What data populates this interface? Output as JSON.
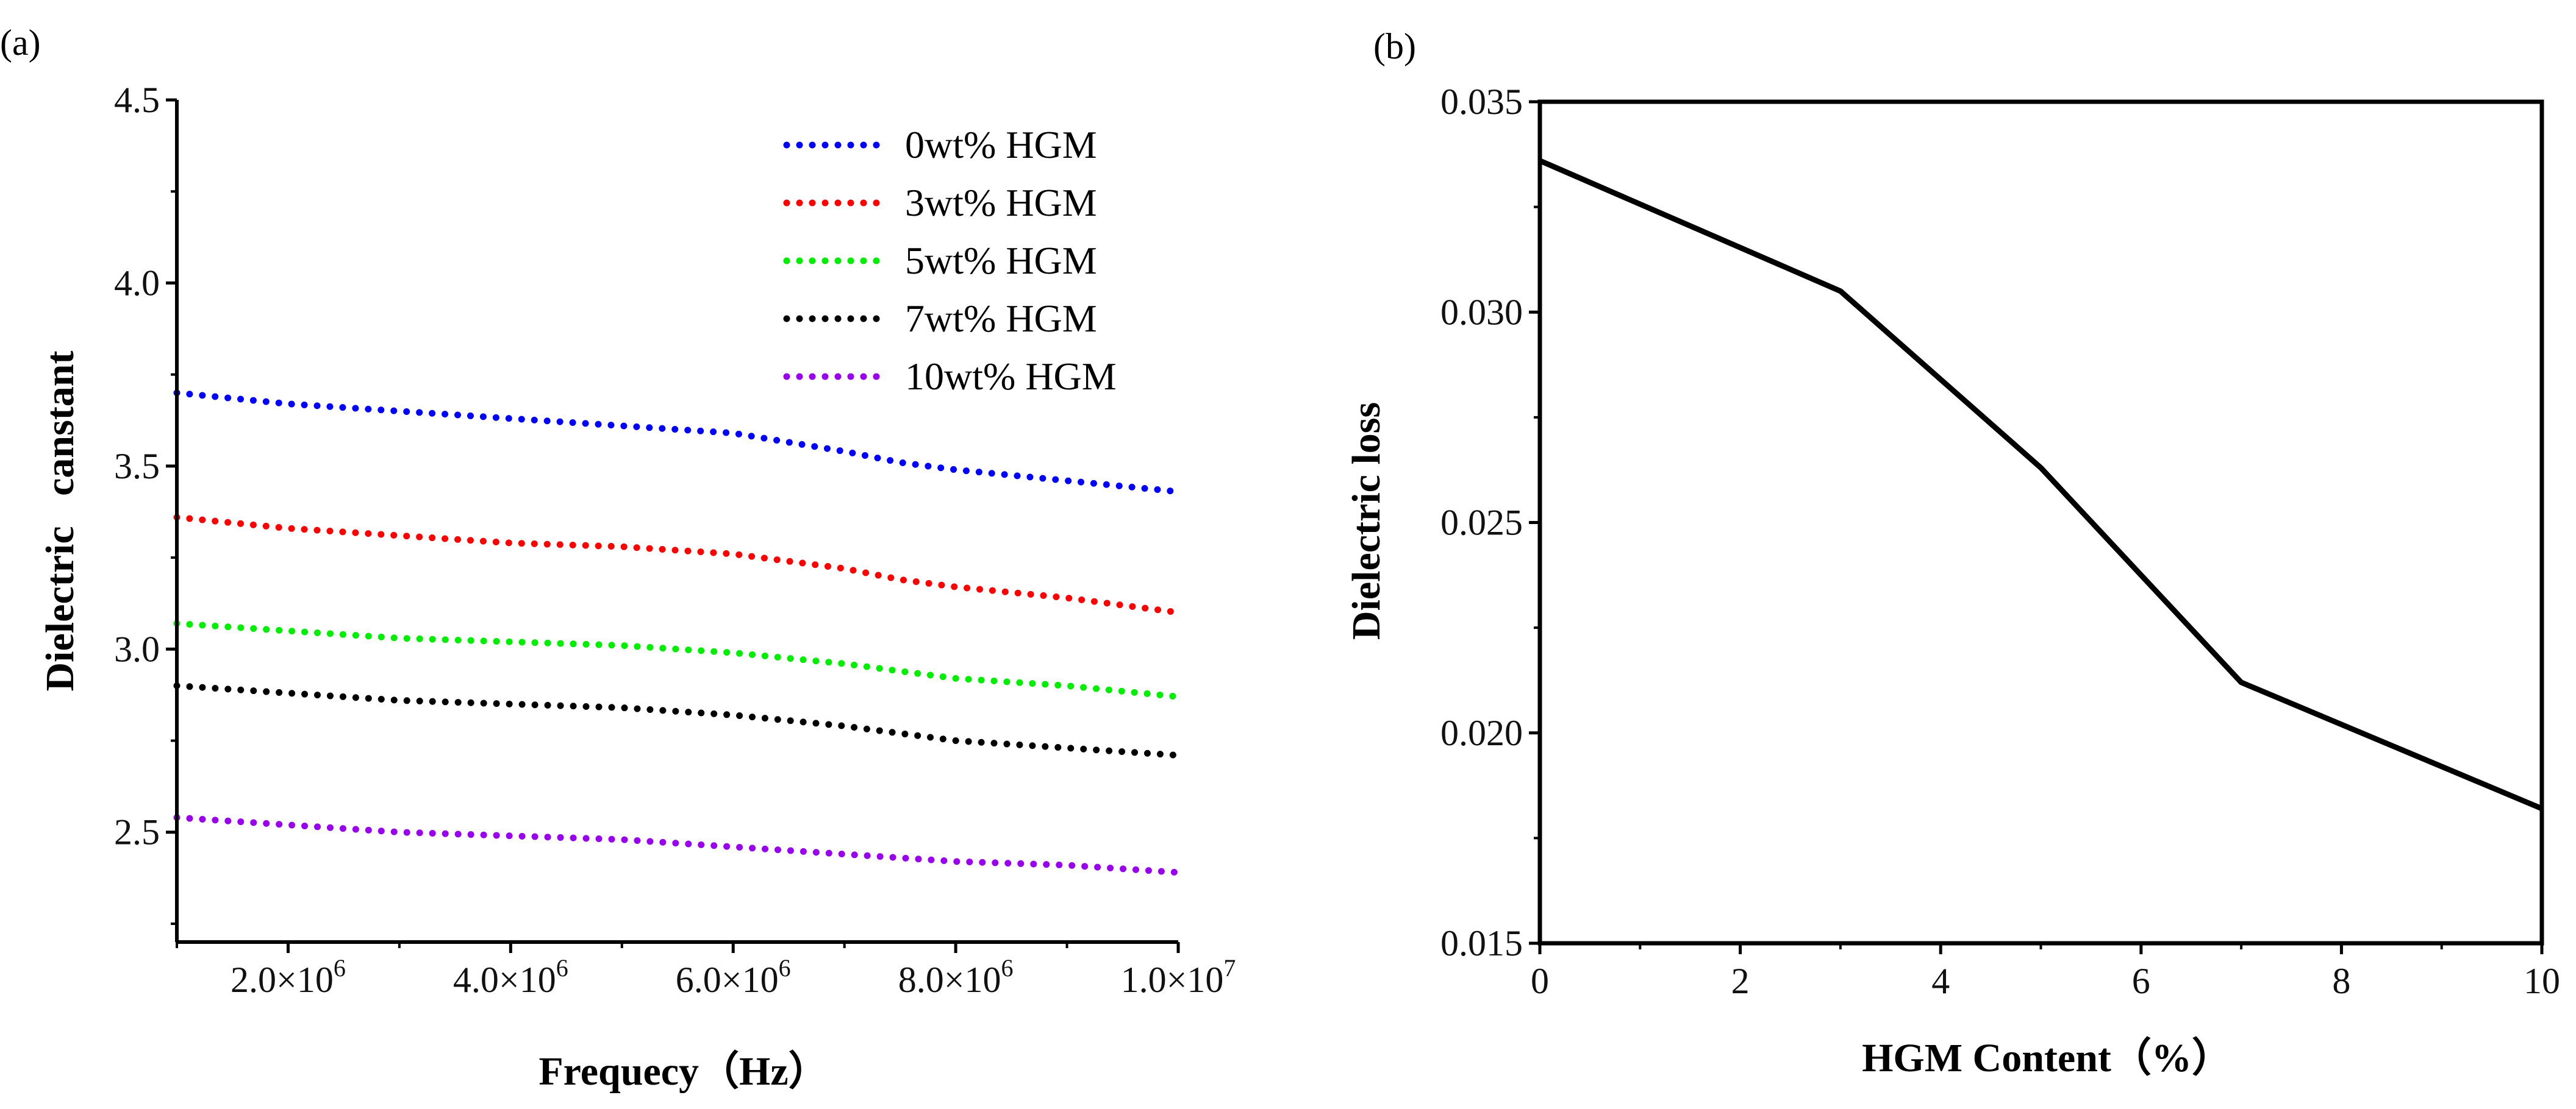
{
  "chart_data": [
    {
      "panel": "(a)",
      "type": "line",
      "line_style": "dotted",
      "title": "",
      "xlabel": "Frequecy（Hz）",
      "ylabel": "Dielectric   canstant",
      "xlim": [
        1000000,
        10000000
      ],
      "ylim": [
        2.2,
        4.5
      ],
      "x_ticks": [
        2000000,
        4000000,
        6000000,
        8000000,
        10000000
      ],
      "x_tick_labels": [
        {
          "mantissa": "2.0×10",
          "exp": "6"
        },
        {
          "mantissa": "4.0×10",
          "exp": "6"
        },
        {
          "mantissa": "6.0×10",
          "exp": "6"
        },
        {
          "mantissa": "8.0×10",
          "exp": "6"
        },
        {
          "mantissa": "1.0×10",
          "exp": "7"
        }
      ],
      "y_ticks": [
        2.5,
        3.0,
        3.5,
        4.0,
        4.5
      ],
      "y_tick_labels": [
        "2.5",
        "3.0",
        "3.5",
        "4.0",
        "4.5"
      ],
      "legend_position": "top-right",
      "x": [
        1000000,
        2000000,
        3000000,
        4000000,
        5000000,
        6000000,
        7000000,
        7500000,
        8000000,
        9000000,
        10000000
      ],
      "series": [
        {
          "name": "0wt% HGM",
          "color": "#0000ff",
          "values": [
            3.7,
            3.67,
            3.65,
            3.63,
            3.61,
            3.59,
            3.54,
            3.51,
            3.49,
            3.46,
            3.43
          ]
        },
        {
          "name": "3wt% HGM",
          "color": "#ff0000",
          "values": [
            3.36,
            3.33,
            3.31,
            3.29,
            3.28,
            3.26,
            3.22,
            3.19,
            3.17,
            3.14,
            3.1
          ]
        },
        {
          "name": "5wt% HGM",
          "color": "#00ee00",
          "values": [
            3.07,
            3.05,
            3.03,
            3.02,
            3.01,
            2.99,
            2.96,
            2.94,
            2.92,
            2.9,
            2.87
          ]
        },
        {
          "name": "7wt% HGM",
          "color": "#000000",
          "values": [
            2.9,
            2.88,
            2.86,
            2.85,
            2.84,
            2.82,
            2.79,
            2.77,
            2.75,
            2.73,
            2.71
          ]
        },
        {
          "name": "10wt% HGM",
          "color": "#9900ee",
          "values": [
            2.54,
            2.52,
            2.5,
            2.49,
            2.48,
            2.46,
            2.44,
            2.43,
            2.42,
            2.41,
            2.39
          ]
        }
      ]
    },
    {
      "panel": "(b)",
      "type": "line",
      "title": "",
      "xlabel": "HGM Content（%）",
      "ylabel": "Dielectric loss",
      "xlim": [
        0,
        10
      ],
      "ylim": [
        0.015,
        0.035
      ],
      "x_ticks": [
        0,
        2,
        4,
        6,
        8,
        10
      ],
      "x_tick_labels": [
        "0",
        "2",
        "4",
        "6",
        "8",
        "10"
      ],
      "y_ticks": [
        0.015,
        0.02,
        0.025,
        0.03,
        0.035
      ],
      "y_tick_labels": [
        "0.015",
        "0.020",
        "0.025",
        "0.030",
        "0.035"
      ],
      "series": [
        {
          "name": "Dielectric loss",
          "color": "#000000",
          "x": [
            0,
            3,
            5,
            7,
            10
          ],
          "values": [
            0.0336,
            0.0305,
            0.0263,
            0.0212,
            0.0182
          ]
        }
      ]
    }
  ]
}
